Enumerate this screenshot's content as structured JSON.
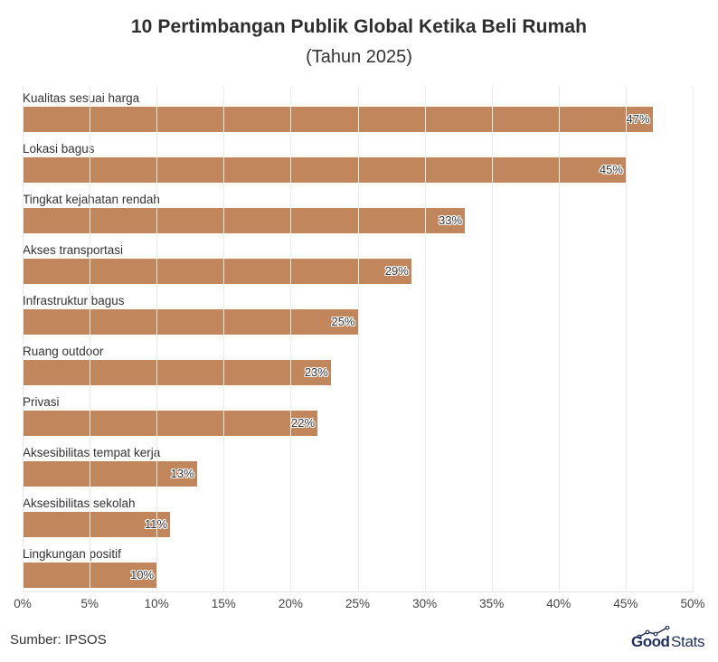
{
  "header": {
    "title": "10 Pertimbangan Publik Global Ketika Beli Rumah",
    "subtitle": "(Tahun 2025)"
  },
  "footer": {
    "source": "Sumber: IPSOS",
    "logo_bold": "Good",
    "logo_light": "Stats"
  },
  "colors": {
    "bar": "#c2865d",
    "logo": "#1f2d5c"
  },
  "axis": {
    "ticks": [
      "0%",
      "5%",
      "10%",
      "15%",
      "20%",
      "25%",
      "30%",
      "35%",
      "40%",
      "45%",
      "50%"
    ]
  },
  "bars": [
    {
      "label": "Kualitas sesuai harga",
      "value": 47,
      "display": "47%"
    },
    {
      "label": "Lokasi bagus",
      "value": 45,
      "display": "45%"
    },
    {
      "label": "Tingkat kejahatan rendah",
      "value": 33,
      "display": "33%"
    },
    {
      "label": "Akses transportasi",
      "value": 29,
      "display": "29%"
    },
    {
      "label": "Infrastruktur bagus",
      "value": 25,
      "display": "25%"
    },
    {
      "label": "Ruang outdoor",
      "value": 23,
      "display": "23%"
    },
    {
      "label": "Privasi",
      "value": 22,
      "display": "22%"
    },
    {
      "label": "Aksesibilitas tempat kerja",
      "value": 13,
      "display": "13%"
    },
    {
      "label": "Aksesibilitas sekolah",
      "value": 11,
      "display": "11%"
    },
    {
      "label": "Lingkungan positif",
      "value": 10,
      "display": "10%"
    }
  ],
  "chart_data": {
    "type": "bar",
    "orientation": "horizontal",
    "title": "10 Pertimbangan Publik Global Ketika Beli Rumah",
    "subtitle": "(Tahun 2025)",
    "categories": [
      "Kualitas sesuai harga",
      "Lokasi bagus",
      "Tingkat kejahatan rendah",
      "Akses transportasi",
      "Infrastruktur bagus",
      "Ruang outdoor",
      "Privasi",
      "Aksesibilitas tempat kerja",
      "Aksesibilitas sekolah",
      "Lingkungan positif"
    ],
    "values": [
      47,
      45,
      33,
      29,
      25,
      23,
      22,
      13,
      11,
      10
    ],
    "unit": "%",
    "xlabel": "",
    "ylabel": "",
    "xlim": [
      0,
      50
    ],
    "xticks": [
      "0%",
      "5%",
      "10%",
      "15%",
      "20%",
      "25%",
      "30%",
      "35%",
      "40%",
      "45%",
      "50%"
    ],
    "grid": true,
    "legend": null,
    "data_labels": true,
    "source": "Sumber: IPSOS"
  }
}
